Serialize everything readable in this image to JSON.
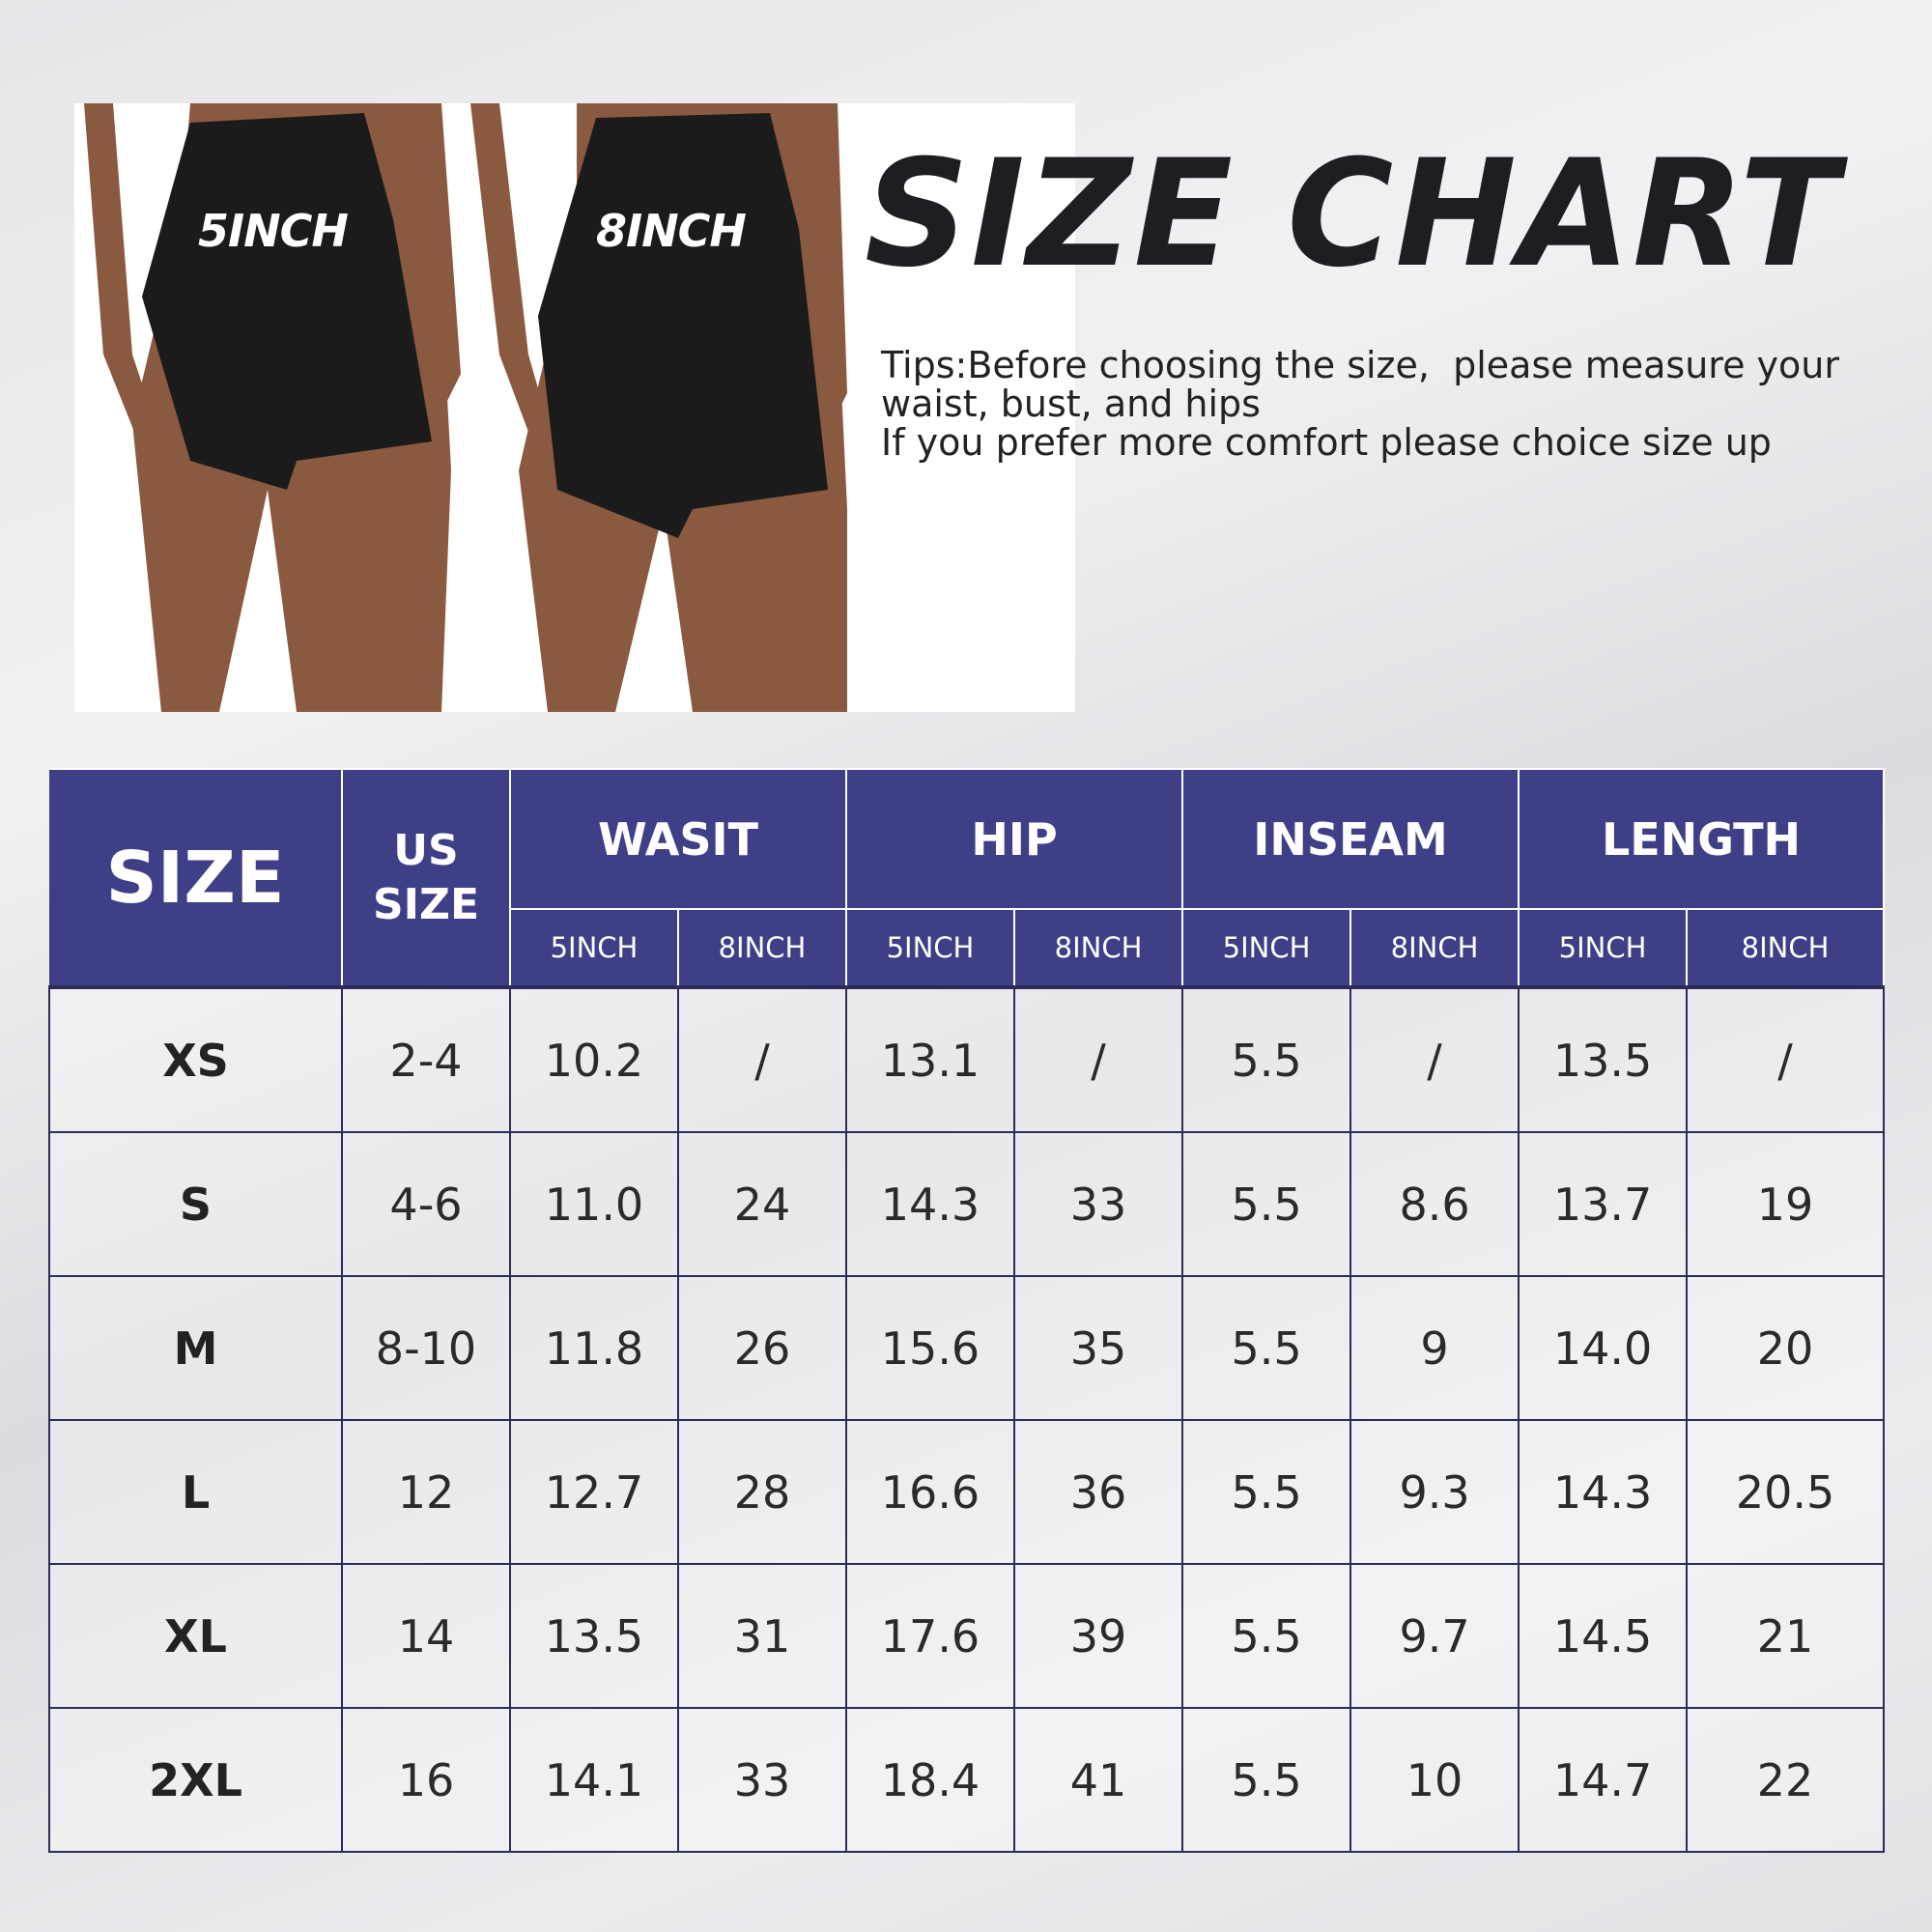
{
  "photo": {
    "labels": [
      "5INCH",
      "8INCH"
    ]
  },
  "title": "SIZE CHART",
  "tips": [
    "Tips:Before choosing the size,  please measure your",
    "waist, bust, and hips",
    "If you prefer more comfort please choice size up"
  ],
  "colors": {
    "header": "#3f3f87",
    "border": "#2c2c58",
    "title": "#1e1e22"
  },
  "table": {
    "headers": {
      "size": "SIZE",
      "us_size": "US SIZE",
      "groups": [
        "WASIT",
        "HIP",
        "INSEAM",
        "LENGTH"
      ],
      "sub": [
        "5INCH",
        "8INCH"
      ]
    },
    "rows": [
      {
        "size": "XS",
        "us": "2-4",
        "values": [
          "10.2",
          "/",
          "13.1",
          "/",
          "5.5",
          "/",
          "13.5",
          "/"
        ]
      },
      {
        "size": "S",
        "us": "4-6",
        "values": [
          "11.0",
          "24",
          "14.3",
          "33",
          "5.5",
          "8.6",
          "13.7",
          "19"
        ]
      },
      {
        "size": "M",
        "us": "8-10",
        "values": [
          "11.8",
          "26",
          "15.6",
          "35",
          "5.5",
          "9",
          "14.0",
          "20"
        ]
      },
      {
        "size": "L",
        "us": "12",
        "values": [
          "12.7",
          "28",
          "16.6",
          "36",
          "5.5",
          "9.3",
          "14.3",
          "20.5"
        ]
      },
      {
        "size": "XL",
        "us": "14",
        "values": [
          "13.5",
          "31",
          "17.6",
          "39",
          "5.5",
          "9.7",
          "14.5",
          "21"
        ]
      },
      {
        "size": "2XL",
        "us": "16",
        "values": [
          "14.1",
          "33",
          "18.4",
          "41",
          "5.5",
          "10",
          "14.7",
          "22"
        ]
      }
    ]
  }
}
